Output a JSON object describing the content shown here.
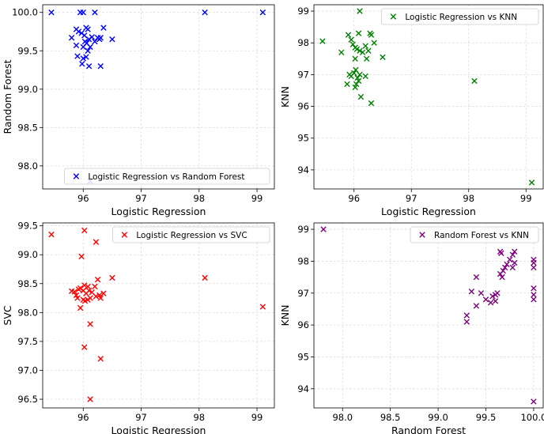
{
  "chart_data": [
    {
      "type": "scatter",
      "marker": "x",
      "color": "#0000ff",
      "xlabel": "Logistic Regression",
      "ylabel": "Random Forest",
      "legend": "Logistic Regression vs Random Forest",
      "legend_loc": "lower-right",
      "grid": true,
      "xlim": [
        95.3,
        99.3
      ],
      "ylim": [
        97.7,
        100.1
      ],
      "xticks": [
        96,
        97,
        98,
        99
      ],
      "xtick_labels": [
        "96",
        "97",
        "98",
        "99"
      ],
      "yticks": [
        98.0,
        98.5,
        99.0,
        99.5,
        100.0
      ],
      "ytick_labels": [
        "98.0",
        "98.5",
        "99.0",
        "99.5",
        "100.0"
      ],
      "points": [
        [
          95.45,
          100.0
        ],
        [
          95.95,
          100.0
        ],
        [
          96.0,
          100.0
        ],
        [
          96.2,
          100.0
        ],
        [
          98.1,
          100.0
        ],
        [
          99.1,
          100.0
        ],
        [
          95.8,
          99.67
        ],
        [
          95.88,
          99.78
        ],
        [
          95.92,
          99.75
        ],
        [
          95.97,
          99.73
        ],
        [
          96.02,
          99.7
        ],
        [
          96.05,
          99.8
        ],
        [
          96.1,
          99.65
        ],
        [
          96.08,
          99.78
        ],
        [
          96.06,
          99.6
        ],
        [
          96.03,
          99.62
        ],
        [
          96.0,
          99.55
        ],
        [
          96.12,
          99.55
        ],
        [
          96.15,
          99.68
        ],
        [
          96.2,
          99.62
        ],
        [
          96.25,
          99.67
        ],
        [
          96.28,
          99.65
        ],
        [
          96.3,
          99.67
        ],
        [
          96.35,
          99.8
        ],
        [
          96.5,
          99.65
        ],
        [
          95.88,
          99.57
        ],
        [
          95.9,
          99.43
        ],
        [
          96.0,
          99.4
        ],
        [
          96.05,
          99.42
        ],
        [
          96.08,
          99.5
        ],
        [
          95.98,
          99.33
        ],
        [
          96.1,
          99.3
        ],
        [
          96.3,
          99.3
        ],
        [
          96.12,
          97.8
        ]
      ]
    },
    {
      "type": "scatter",
      "marker": "x",
      "color": "#008000",
      "xlabel": "Logistic Regression",
      "ylabel": "KNN",
      "legend": "Logistic Regression vs KNN",
      "legend_loc": "upper-right",
      "grid": true,
      "xlim": [
        95.3,
        99.3
      ],
      "ylim": [
        93.4,
        99.2
      ],
      "xticks": [
        96,
        97,
        98,
        99
      ],
      "xtick_labels": [
        "96",
        "97",
        "98",
        "99"
      ],
      "yticks": [
        94,
        95,
        96,
        97,
        98,
        99
      ],
      "ytick_labels": [
        "94",
        "95",
        "96",
        "97",
        "98",
        "99"
      ],
      "points": [
        [
          96.1,
          99.0
        ],
        [
          95.45,
          98.05
        ],
        [
          95.9,
          98.25
        ],
        [
          95.95,
          98.1
        ],
        [
          95.98,
          97.95
        ],
        [
          96.02,
          97.85
        ],
        [
          96.05,
          97.8
        ],
        [
          96.08,
          98.3
        ],
        [
          96.1,
          97.75
        ],
        [
          96.15,
          97.7
        ],
        [
          96.2,
          97.9
        ],
        [
          96.25,
          97.75
        ],
        [
          96.28,
          98.3
        ],
        [
          96.3,
          98.25
        ],
        [
          96.35,
          98.0
        ],
        [
          96.5,
          97.55
        ],
        [
          95.78,
          97.7
        ],
        [
          96.02,
          97.5
        ],
        [
          96.22,
          97.5
        ],
        [
          95.92,
          97.0
        ],
        [
          95.95,
          96.95
        ],
        [
          96.0,
          97.05
        ],
        [
          96.03,
          97.15
        ],
        [
          96.06,
          96.9
        ],
        [
          96.1,
          97.0
        ],
        [
          96.08,
          96.8
        ],
        [
          96.04,
          96.7
        ],
        [
          95.88,
          96.7
        ],
        [
          96.02,
          96.6
        ],
        [
          96.2,
          96.95
        ],
        [
          96.12,
          96.3
        ],
        [
          96.3,
          96.1
        ],
        [
          98.1,
          96.8
        ],
        [
          99.1,
          93.6
        ]
      ]
    },
    {
      "type": "scatter",
      "marker": "x",
      "color": "#ff0000",
      "xlabel": "Logistic Regression",
      "ylabel": "SVC",
      "legend": "Logistic Regression vs SVC",
      "legend_loc": "upper-right",
      "grid": true,
      "xlim": [
        95.3,
        99.3
      ],
      "ylim": [
        96.35,
        99.55
      ],
      "xticks": [
        96,
        97,
        98,
        99
      ],
      "xtick_labels": [
        "96",
        "97",
        "98",
        "99"
      ],
      "yticks": [
        96.5,
        97.0,
        97.5,
        98.0,
        98.5,
        99.0,
        99.5
      ],
      "ytick_labels": [
        "96.5",
        "97.0",
        "97.5",
        "98.0",
        "98.5",
        "99.0",
        "99.5"
      ],
      "points": [
        [
          95.45,
          99.35
        ],
        [
          96.02,
          99.42
        ],
        [
          96.22,
          99.22
        ],
        [
          95.97,
          98.97
        ],
        [
          96.5,
          98.6
        ],
        [
          98.1,
          98.6
        ],
        [
          99.1,
          98.1
        ],
        [
          96.25,
          98.57
        ],
        [
          96.2,
          98.45
        ],
        [
          96.02,
          98.47
        ],
        [
          95.95,
          98.42
        ],
        [
          96.08,
          98.45
        ],
        [
          96.1,
          98.38
        ],
        [
          96.15,
          98.35
        ],
        [
          96.05,
          98.33
        ],
        [
          96.0,
          98.38
        ],
        [
          95.92,
          98.4
        ],
        [
          95.85,
          98.36
        ],
        [
          95.8,
          98.37
        ],
        [
          95.88,
          98.3
        ],
        [
          95.9,
          98.25
        ],
        [
          96.0,
          98.22
        ],
        [
          96.03,
          98.2
        ],
        [
          96.08,
          98.22
        ],
        [
          96.12,
          98.25
        ],
        [
          96.22,
          98.28
        ],
        [
          96.28,
          98.3
        ],
        [
          96.35,
          98.33
        ],
        [
          96.3,
          98.25
        ],
        [
          95.95,
          98.08
        ],
        [
          96.12,
          97.8
        ],
        [
          96.02,
          97.4
        ],
        [
          96.3,
          97.2
        ],
        [
          96.12,
          96.5
        ]
      ]
    },
    {
      "type": "scatter",
      "marker": "x",
      "color": "#800080",
      "xlabel": "Random Forest",
      "ylabel": "KNN",
      "legend": "Random Forest vs KNN",
      "legend_loc": "upper-right",
      "grid": true,
      "xlim": [
        97.7,
        100.1
      ],
      "ylim": [
        93.4,
        99.2
      ],
      "xticks": [
        98.0,
        98.5,
        99.0,
        99.5,
        100.0
      ],
      "xtick_labels": [
        "98.0",
        "98.5",
        "99.0",
        "99.5",
        "100.0"
      ],
      "yticks": [
        94,
        95,
        96,
        97,
        98,
        99
      ],
      "ytick_labels": [
        "94",
        "95",
        "96",
        "97",
        "98",
        "99"
      ],
      "points": [
        [
          97.8,
          99.0
        ],
        [
          99.65,
          98.3
        ],
        [
          99.66,
          98.25
        ],
        [
          99.8,
          98.3
        ],
        [
          99.78,
          98.2
        ],
        [
          99.75,
          98.05
        ],
        [
          99.8,
          97.95
        ],
        [
          99.72,
          97.9
        ],
        [
          99.7,
          97.8
        ],
        [
          99.68,
          97.7
        ],
        [
          99.65,
          97.6
        ],
        [
          99.67,
          97.5
        ],
        [
          99.4,
          97.5
        ],
        [
          99.78,
          97.8
        ],
        [
          100.0,
          98.05
        ],
        [
          100.0,
          97.95
        ],
        [
          100.0,
          97.8
        ],
        [
          100.0,
          97.15
        ],
        [
          100.0,
          96.95
        ],
        [
          100.0,
          96.8
        ],
        [
          99.62,
          97.0
        ],
        [
          99.6,
          96.95
        ],
        [
          99.57,
          96.9
        ],
        [
          99.6,
          96.75
        ],
        [
          99.55,
          96.7
        ],
        [
          99.5,
          96.8
        ],
        [
          99.45,
          97.0
        ],
        [
          99.35,
          97.05
        ],
        [
          99.4,
          96.6
        ],
        [
          99.3,
          96.3
        ],
        [
          99.3,
          96.1
        ],
        [
          100.0,
          93.6
        ]
      ]
    }
  ]
}
